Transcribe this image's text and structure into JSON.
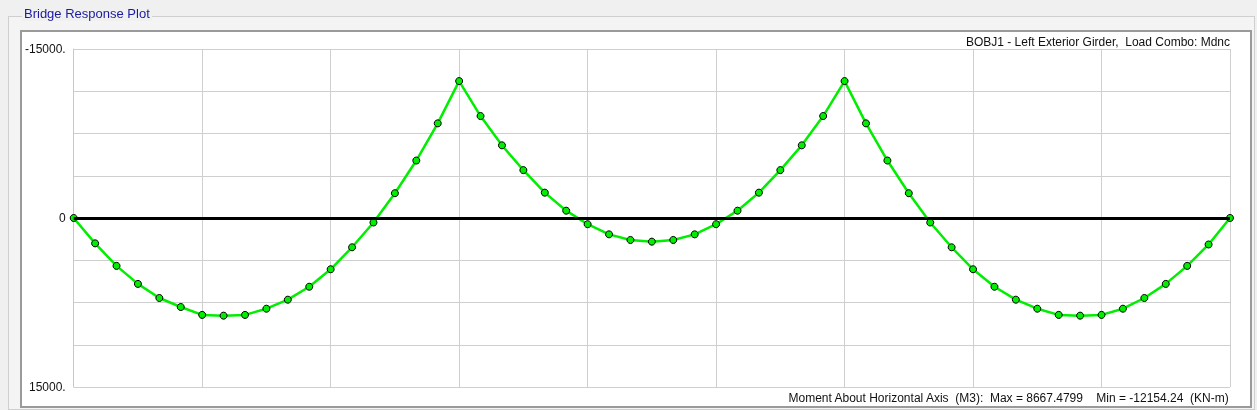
{
  "chart_data": {
    "type": "line",
    "title": "Bridge Response Plot",
    "subtitle": "BOBJ1 - Left Exterior Girder,  Load Combo: Mdnc",
    "annotations": [
      "Moment About Horizontal Axis  (M3):  Max = 8667.4799    Min = -12154.24  (KN-m)"
    ],
    "categories": [
      null,
      null,
      null,
      null,
      null,
      null,
      null,
      null,
      null,
      null,
      null,
      null,
      null,
      null,
      null,
      null,
      null,
      null,
      null,
      null,
      null,
      null,
      null,
      null,
      null,
      null,
      null,
      null,
      null,
      null,
      null,
      null,
      null,
      null,
      null,
      null,
      null,
      null,
      null,
      null,
      null,
      null,
      null,
      null,
      null,
      null,
      null,
      null,
      null,
      null,
      null,
      null,
      null,
      null,
      null
    ],
    "ylim": [
      15000,
      -15000
    ],
    "yticks": [
      {
        "value": -15000,
        "label": "-15000."
      },
      {
        "value": -11250,
        "label": null
      },
      {
        "value": -7500,
        "label": null
      },
      {
        "value": -3750,
        "label": null
      },
      0,
      {
        "value": 3750,
        "label": null
      },
      {
        "value": 7500,
        "label": null
      },
      {
        "value": 11250,
        "label": null
      },
      {
        "value": 15000,
        "label": "15000."
      }
    ],
    "tick_labels": "y",
    "grid": true,
    "marker": "circle",
    "line_style": "solid",
    "ref_lines": [
      {
        "axis": "y",
        "value": 0,
        "color": "#000000"
      }
    ],
    "series": [
      {
        "color": "#00ee00",
        "values": [
          0,
          2250,
          4250,
          5850,
          7100,
          7900,
          8600,
          8667.48,
          8600,
          8050,
          7250,
          6100,
          4550,
          2600,
          400,
          -2200,
          -5100,
          -8400,
          -12154.24,
          -9050,
          -6450,
          -4250,
          -2250,
          -650,
          550,
          1450,
          1950,
          2100,
          1950,
          1450,
          550,
          -650,
          -2250,
          -4250,
          -6450,
          -9050,
          -12154.24,
          -8400,
          -5100,
          -2200,
          400,
          2600,
          4550,
          6100,
          7250,
          8050,
          8600,
          8667.48,
          8600,
          8050,
          7100,
          5850,
          4250,
          2350,
          0
        ]
      }
    ]
  }
}
